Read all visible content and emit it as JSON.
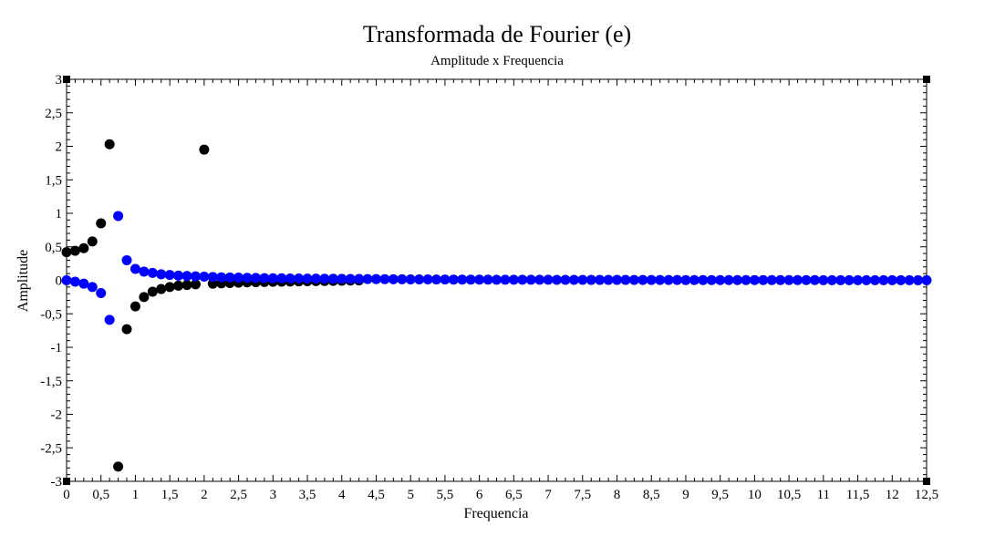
{
  "chart_data": {
    "type": "scatter",
    "title": "Transformada de Fourier (e)",
    "subtitle": "Amplitude x Frequencia",
    "xlabel": "Frequencia",
    "ylabel": "Amplitude",
    "xlim": [
      0,
      12.5
    ],
    "ylim": [
      -3,
      3
    ],
    "x_ticks": [
      0,
      0.5,
      1,
      1.5,
      2,
      2.5,
      3,
      3.5,
      4,
      4.5,
      5,
      5.5,
      6,
      6.5,
      7,
      7.5,
      8,
      8.5,
      9,
      9.5,
      10,
      10.5,
      11,
      11.5,
      12,
      12.5
    ],
    "x_tick_labels": [
      "0",
      "0,5",
      "1",
      "1,5",
      "2",
      "2,5",
      "3",
      "3,5",
      "4",
      "4,5",
      "5",
      "5,5",
      "6",
      "6,5",
      "7",
      "7,5",
      "8",
      "8,5",
      "9",
      "9,5",
      "10",
      "10,5",
      "11",
      "11,5",
      "12",
      "12,5"
    ],
    "y_ticks": [
      3,
      2.5,
      2,
      1.5,
      1,
      0.5,
      0,
      -0.5,
      -1,
      -1.5,
      -2,
      -2.5,
      -3
    ],
    "y_tick_labels": [
      "3",
      "2,5",
      "2",
      "1,5",
      "1",
      "0,5",
      "0",
      "-0,5",
      "-1",
      "-1,5",
      "-2",
      "-2,5",
      "-3"
    ],
    "grid": false,
    "x_step": 0.125,
    "series": [
      {
        "color": "#000000",
        "x": [
          0,
          0.125,
          0.25,
          0.375,
          0.5,
          0.625,
          0.75,
          0.875,
          1,
          1.125,
          1.25,
          1.375,
          1.5,
          1.625,
          1.75,
          1.875,
          2,
          2.125,
          2.25,
          2.375,
          2.5,
          2.625,
          2.75,
          2.875,
          3,
          3.125,
          3.25,
          3.375,
          3.5,
          3.625,
          3.75,
          3.875,
          4,
          4.125,
          4.25
        ],
        "y": [
          0.42,
          0.44,
          0.48,
          0.58,
          0.85,
          2.03,
          -2.78,
          -0.73,
          -0.39,
          -0.25,
          -0.17,
          -0.13,
          -0.1,
          -0.08,
          -0.07,
          -0.06,
          1.95,
          -0.05,
          -0.045,
          -0.04,
          -0.035,
          -0.03,
          -0.028,
          -0.025,
          -0.022,
          -0.02,
          -0.018,
          -0.016,
          -0.014,
          -0.012,
          -0.01,
          -0.008,
          -0.006,
          -0.004,
          -0.002
        ]
      },
      {
        "color": "#0000ff",
        "x_start": 0,
        "count": 101,
        "y": [
          0,
          -0.02,
          -0.05,
          -0.1,
          -0.19,
          -0.59,
          0.96,
          0.3,
          0.17,
          0.13,
          0.11,
          0.09,
          0.08,
          0.07,
          0.065,
          0.06,
          0.055,
          0.05,
          0.045,
          0.042,
          0.04,
          0.037,
          0.035,
          0.033,
          0.031,
          0.03,
          0.028,
          0.027,
          0.026,
          0.025,
          0.024,
          0.023,
          0.022,
          0.021,
          0.02,
          0.019,
          0.018,
          0.017,
          0.016,
          0.015,
          0.014,
          0.013,
          0.013,
          0.012,
          0.012,
          0.011,
          0.011,
          0.01,
          0.01,
          0.01,
          0.009,
          0.009,
          0.009,
          0.008,
          0.008,
          0.008,
          0.008,
          0.007,
          0.007,
          0.007,
          0.007,
          0.006,
          0.006,
          0.006,
          0.006,
          0.006,
          0.005,
          0.005,
          0.005,
          0.005,
          0.005,
          0.005,
          0.004,
          0.004,
          0.004,
          0.004,
          0.004,
          0.004,
          0.004,
          0.003,
          0.003,
          0.003,
          0.003,
          0.003,
          0.003,
          0.003,
          0.003,
          0.003,
          0.002,
          0.002,
          0.002,
          0.002,
          0.002,
          0.002,
          0.002,
          0.002,
          0.002,
          0.002,
          0.002,
          0.001,
          0.001
        ]
      }
    ]
  }
}
